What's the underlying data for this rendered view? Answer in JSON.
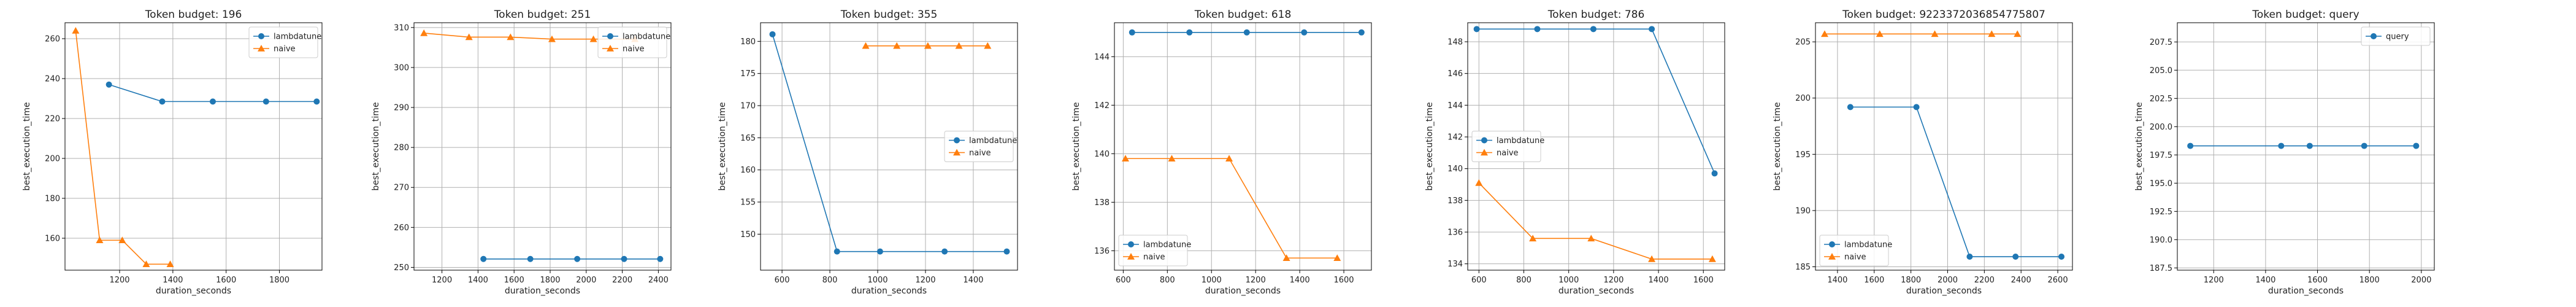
{
  "colors": {
    "lambdatune": "#1f77b4",
    "naive": "#ff7f0e",
    "grid": "#b0b0b0",
    "axis": "#000000"
  },
  "chart_data": [
    {
      "type": "line",
      "title": "Token budget: 196",
      "xlabel": "duration_seconds",
      "ylabel": "best_execution_time",
      "xlim": [
        995,
        1960
      ],
      "ylim": [
        144,
        268
      ],
      "xticks": [
        1200,
        1400,
        1600,
        1800
      ],
      "xtick_labels": [
        "1200",
        "1400",
        "1600",
        "1800"
      ],
      "yticks": [
        160,
        180,
        200,
        220,
        240,
        260
      ],
      "ytick_labels": [
        "160",
        "180",
        "200",
        "220",
        "240",
        "260"
      ],
      "grid": true,
      "legend": "top-right",
      "series": [
        {
          "name": "lambdatune",
          "color": "#1f77b4",
          "marker": "circle",
          "x": [
            1160,
            1360,
            1550,
            1750,
            1940
          ],
          "y": [
            237,
            228.5,
            228.5,
            228.5,
            228.5
          ]
        },
        {
          "name": "naive",
          "color": "#ff7f0e",
          "marker": "triangle",
          "x": [
            1035,
            1125,
            1210,
            1300,
            1390
          ],
          "y": [
            264,
            159,
            159,
            147,
            147
          ]
        }
      ]
    },
    {
      "type": "line",
      "title": "Token budget: 251",
      "xlabel": "duration_seconds",
      "ylabel": "best_execution_time",
      "xlim": [
        1045,
        2470
      ],
      "ylim": [
        249.3,
        311.2
      ],
      "xticks": [
        1200,
        1400,
        1600,
        1800,
        2000,
        2200,
        2400
      ],
      "xtick_labels": [
        "1200",
        "1400",
        "1600",
        "1800",
        "2000",
        "2200",
        "2400"
      ],
      "yticks": [
        250,
        260,
        270,
        280,
        290,
        300,
        310
      ],
      "ytick_labels": [
        "250",
        "260",
        "270",
        "280",
        "290",
        "300",
        "310"
      ],
      "grid": true,
      "legend": "top-right",
      "series": [
        {
          "name": "lambdatune",
          "color": "#1f77b4",
          "marker": "circle",
          "x": [
            1430,
            1690,
            1950,
            2210,
            2410
          ],
          "y": [
            252.1,
            252.1,
            252.1,
            252.1,
            252.1
          ]
        },
        {
          "name": "naive",
          "color": "#ff7f0e",
          "marker": "triangle",
          "x": [
            1100,
            1350,
            1580,
            1810,
            2040,
            2270
          ],
          "y": [
            308.6,
            307.6,
            307.6,
            307.1,
            307.1,
            307.1
          ]
        }
      ]
    },
    {
      "type": "line",
      "title": "Token budget: 355",
      "xlabel": "duration_seconds",
      "ylabel": "best_execution_time",
      "xlim": [
        510,
        1585
      ],
      "ylim": [
        144.4,
        182.9
      ],
      "xticks": [
        600,
        800,
        1000,
        1200,
        1400
      ],
      "xtick_labels": [
        "600",
        "800",
        "1000",
        "1200",
        "1400"
      ],
      "yticks": [
        150,
        155,
        160,
        165,
        170,
        175,
        180
      ],
      "ytick_labels": [
        "150",
        "155",
        "160",
        "165",
        "170",
        "175",
        "180"
      ],
      "grid": true,
      "legend": "center-right",
      "series": [
        {
          "name": "lambdatune",
          "color": "#1f77b4",
          "marker": "circle",
          "x": [
            560,
            830,
            1010,
            1280,
            1540
          ],
          "y": [
            181.1,
            147.3,
            147.3,
            147.3,
            147.3
          ]
        },
        {
          "name": "naive",
          "color": "#ff7f0e",
          "marker": "triangle",
          "x": [
            950,
            1080,
            1210,
            1340,
            1460
          ],
          "y": [
            179.3,
            179.3,
            179.3,
            179.3,
            179.3
          ]
        }
      ]
    },
    {
      "type": "line",
      "title": "Token budget: 618",
      "xlabel": "duration_seconds",
      "ylabel": "best_execution_time",
      "xlim": [
        560,
        1725
      ],
      "ylim": [
        135.2,
        145.4
      ],
      "xticks": [
        600,
        800,
        1000,
        1200,
        1400,
        1600
      ],
      "xtick_labels": [
        "600",
        "800",
        "1000",
        "1200",
        "1400",
        "1600"
      ],
      "yticks": [
        136,
        138,
        140,
        142,
        144
      ],
      "ytick_labels": [
        "136",
        "138",
        "140",
        "142",
        "144"
      ],
      "grid": true,
      "legend": "bottom-left",
      "series": [
        {
          "name": "lambdatune",
          "color": "#1f77b4",
          "marker": "circle",
          "x": [
            640,
            900,
            1160,
            1420,
            1680
          ],
          "y": [
            145.0,
            145.0,
            145.0,
            145.0,
            145.0
          ]
        },
        {
          "name": "naive",
          "color": "#ff7f0e",
          "marker": "triangle",
          "x": [
            610,
            820,
            1080,
            1340,
            1570
          ],
          "y": [
            139.8,
            139.8,
            139.8,
            135.7,
            135.7
          ]
        }
      ]
    },
    {
      "type": "line",
      "title": "Token budget: 786",
      "xlabel": "duration_seconds",
      "ylabel": "best_execution_time",
      "xlim": [
        550,
        1695
      ],
      "ylim": [
        133.6,
        149.2
      ],
      "xticks": [
        600,
        800,
        1000,
        1200,
        1400,
        1600
      ],
      "xtick_labels": [
        "600",
        "800",
        "1000",
        "1200",
        "1400",
        "1600"
      ],
      "yticks": [
        134,
        136,
        138,
        140,
        142,
        144,
        146,
        148
      ],
      "ytick_labels": [
        "134",
        "136",
        "138",
        "140",
        "142",
        "144",
        "146",
        "148"
      ],
      "grid": true,
      "legend": "center-left",
      "series": [
        {
          "name": "lambdatune",
          "color": "#1f77b4",
          "marker": "circle",
          "x": [
            590,
            860,
            1110,
            1370,
            1650
          ],
          "y": [
            148.8,
            148.8,
            148.8,
            148.8,
            139.7
          ]
        },
        {
          "name": "naive",
          "color": "#ff7f0e",
          "marker": "triangle",
          "x": [
            600,
            840,
            1100,
            1370,
            1640
          ],
          "y": [
            139.1,
            135.6,
            135.6,
            134.3,
            134.3
          ]
        }
      ]
    },
    {
      "type": "line",
      "title": "Token budget: 9223372036854775807",
      "xlabel": "duration_seconds",
      "ylabel": "best_execution_time",
      "xlim": [
        1280,
        2680
      ],
      "ylim": [
        184.7,
        206.7
      ],
      "xticks": [
        1400,
        1600,
        1800,
        2000,
        2200,
        2400,
        2600
      ],
      "xtick_labels": [
        "1400",
        "1600",
        "1800",
        "2000",
        "2200",
        "2400",
        "2600"
      ],
      "yticks": [
        185,
        190,
        195,
        200,
        205
      ],
      "ytick_labels": [
        "185",
        "190",
        "195",
        "200",
        "205"
      ],
      "grid": true,
      "legend": "bottom-left",
      "series": [
        {
          "name": "lambdatune",
          "color": "#1f77b4",
          "marker": "circle",
          "x": [
            1470,
            1830,
            2120,
            2370,
            2620
          ],
          "y": [
            199.2,
            199.2,
            185.9,
            185.9,
            185.9
          ]
        },
        {
          "name": "naive",
          "color": "#ff7f0e",
          "marker": "triangle",
          "x": [
            1330,
            1630,
            1930,
            2240,
            2380
          ],
          "y": [
            205.7,
            205.7,
            205.7,
            205.7,
            205.7
          ]
        }
      ]
    },
    {
      "type": "line",
      "title": "Token budget: query",
      "xlabel": "duration_seconds",
      "ylabel": "best_execution_time",
      "xlim": [
        1060,
        2050
      ],
      "ylim": [
        187.3,
        209.2
      ],
      "xticks": [
        1200,
        1400,
        1600,
        1800,
        2000
      ],
      "xtick_labels": [
        "1200",
        "1400",
        "1600",
        "1800",
        "2000"
      ],
      "yticks": [
        187.5,
        190.0,
        192.5,
        195.0,
        197.5,
        200.0,
        202.5,
        205.0,
        207.5
      ],
      "ytick_labels": [
        "187.5",
        "190.0",
        "192.5",
        "195.0",
        "197.5",
        "200.0",
        "202.5",
        "205.0",
        "207.5"
      ],
      "grid": true,
      "legend": "top-right",
      "series": [
        {
          "name": "query",
          "color": "#1f77b4",
          "marker": "circle",
          "x": [
            1110,
            1460,
            1570,
            1780,
            1980
          ],
          "y": [
            198.3,
            198.3,
            198.3,
            198.3,
            198.3
          ]
        }
      ]
    }
  ]
}
